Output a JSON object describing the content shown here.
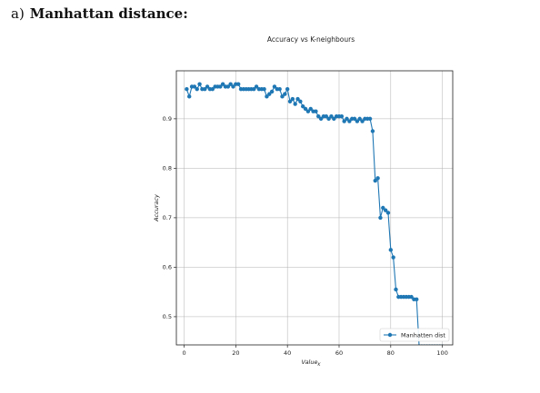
{
  "heading": {
    "prefix": "a)",
    "title": "Manhattan distance:"
  },
  "chart_data": {
    "type": "line",
    "title": "Accuracy vs K-neighbours",
    "xlabel": "Value",
    "xlabel_sub": "K",
    "ylabel": "Accuracy",
    "xlim": [
      -3,
      104
    ],
    "ylim": [
      0.443,
      0.997
    ],
    "xticks": [
      0,
      20,
      40,
      60,
      80,
      100
    ],
    "yticks": [
      0.5,
      0.6,
      0.7,
      0.8,
      0.9
    ],
    "grid": true,
    "legend_position": "lower-right",
    "color": "#1f77b4",
    "series": [
      {
        "name": "Manhatten dist",
        "x": [
          1,
          2,
          3,
          4,
          5,
          6,
          7,
          8,
          9,
          10,
          11,
          12,
          13,
          14,
          15,
          16,
          17,
          18,
          19,
          20,
          21,
          22,
          23,
          24,
          25,
          26,
          27,
          28,
          29,
          30,
          31,
          32,
          33,
          34,
          35,
          36,
          37,
          38,
          39,
          40,
          41,
          42,
          43,
          44,
          45,
          46,
          47,
          48,
          49,
          50,
          51,
          52,
          53,
          54,
          55,
          56,
          57,
          58,
          59,
          60,
          61,
          62,
          63,
          64,
          65,
          66,
          67,
          68,
          69,
          70,
          71,
          72,
          73,
          74,
          75,
          76,
          77,
          78,
          79,
          80,
          81,
          82,
          83,
          84,
          85,
          86,
          87,
          88,
          89,
          90,
          91,
          92,
          93,
          94,
          95,
          96,
          97,
          98,
          99,
          100
        ],
        "y": [
          0.96,
          0.945,
          0.965,
          0.965,
          0.96,
          0.97,
          0.96,
          0.96,
          0.965,
          0.96,
          0.96,
          0.965,
          0.965,
          0.965,
          0.97,
          0.965,
          0.965,
          0.97,
          0.965,
          0.97,
          0.97,
          0.96,
          0.96,
          0.96,
          0.96,
          0.96,
          0.96,
          0.965,
          0.96,
          0.96,
          0.96,
          0.945,
          0.95,
          0.955,
          0.965,
          0.96,
          0.96,
          0.945,
          0.95,
          0.96,
          0.935,
          0.94,
          0.93,
          0.94,
          0.935,
          0.925,
          0.92,
          0.915,
          0.92,
          0.915,
          0.915,
          0.905,
          0.9,
          0.905,
          0.905,
          0.9,
          0.905,
          0.9,
          0.905,
          0.905,
          0.905,
          0.895,
          0.9,
          0.895,
          0.9,
          0.9,
          0.895,
          0.9,
          0.895,
          0.9,
          0.9,
          0.9,
          0.875,
          0.775,
          0.78,
          0.7,
          0.72,
          0.715,
          0.71,
          0.635,
          0.62,
          0.555,
          0.54,
          0.54,
          0.54,
          0.54,
          0.54,
          0.54,
          0.535,
          0.535,
          0.44,
          0.44,
          0.44,
          0.44,
          0.44,
          0.44,
          0.44,
          0.44,
          0.44,
          0.44
        ]
      }
    ]
  }
}
